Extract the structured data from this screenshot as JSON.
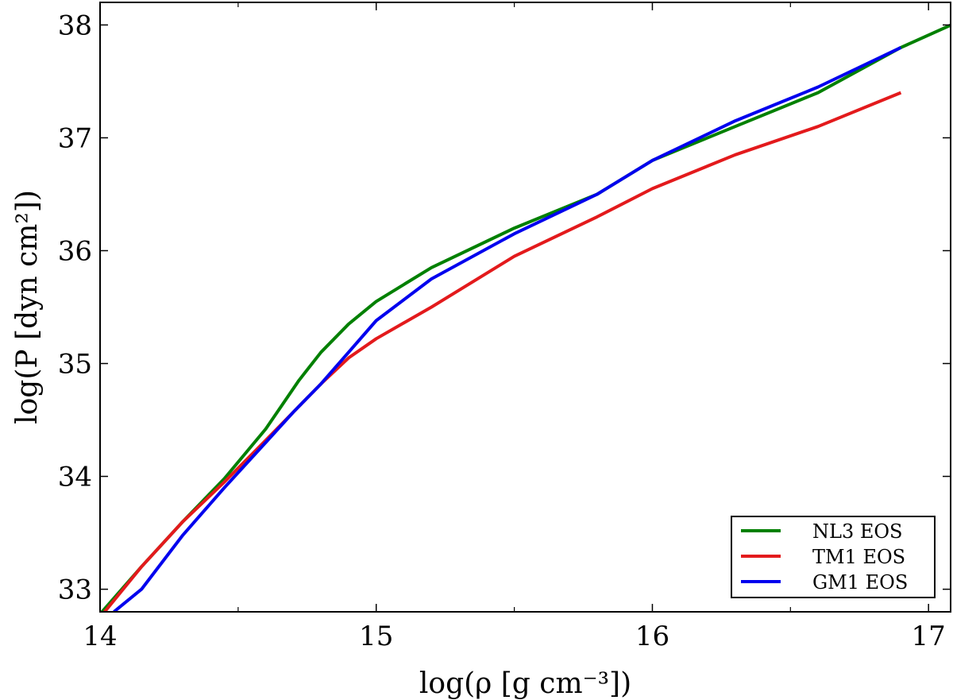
{
  "chart_data": {
    "type": "line",
    "xlabel": "log(ρ [g cm⁻³])",
    "ylabel": "log(P [dyn cm²])",
    "xlim": [
      14.0,
      17.08
    ],
    "ylim": [
      32.8,
      38.2
    ],
    "xticks": [
      "14",
      "15",
      "16",
      "17"
    ],
    "yticks": [
      "33",
      "34",
      "35",
      "36",
      "37",
      "38"
    ],
    "legend_position": "lower-right",
    "grid": false,
    "series": [
      {
        "name": "NL3 EOS",
        "color": "#008000",
        "x": [
          14.0,
          14.15,
          14.3,
          14.45,
          14.6,
          14.72,
          14.8,
          14.9,
          15.0,
          15.2,
          15.5,
          15.8,
          16.0,
          16.3,
          16.6,
          16.9,
          17.1
        ],
        "y": [
          32.78,
          33.2,
          33.6,
          33.98,
          34.42,
          34.85,
          35.1,
          35.35,
          35.55,
          35.85,
          36.2,
          36.5,
          36.8,
          37.1,
          37.4,
          37.8,
          38.02
        ]
      },
      {
        "name": "TM1 EOS",
        "color": "#e31a1c",
        "x": [
          14.0,
          14.15,
          14.3,
          14.45,
          14.6,
          14.7,
          14.8,
          14.9,
          15.0,
          15.2,
          15.5,
          15.8,
          16.0,
          16.3,
          16.6,
          16.9
        ],
        "y": [
          32.75,
          33.2,
          33.6,
          33.95,
          34.32,
          34.57,
          34.82,
          35.05,
          35.22,
          35.5,
          35.95,
          36.3,
          36.55,
          36.85,
          37.1,
          37.4
        ]
      },
      {
        "name": "GM1 EOS",
        "color": "#0000ee",
        "x": [
          14.05,
          14.15,
          14.3,
          14.45,
          14.6,
          14.7,
          14.8,
          14.9,
          15.0,
          15.2,
          15.5,
          15.8,
          16.0,
          16.3,
          16.6,
          16.9
        ],
        "y": [
          32.8,
          33.0,
          33.48,
          33.9,
          34.3,
          34.57,
          34.82,
          35.1,
          35.38,
          35.75,
          36.15,
          36.5,
          36.8,
          37.15,
          37.45,
          37.8
        ]
      }
    ]
  }
}
